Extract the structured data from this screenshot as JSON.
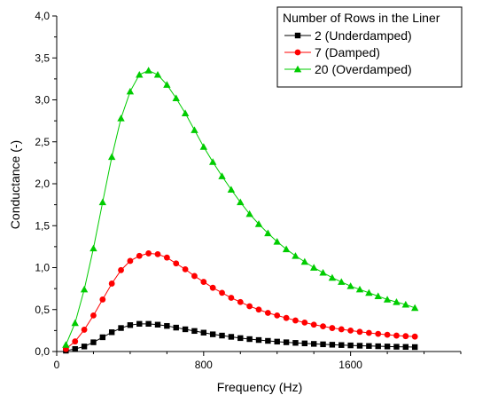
{
  "chart_data": {
    "type": "line",
    "title": "",
    "xlabel": "Frequency (Hz)",
    "ylabel": "Conductance (-)",
    "xlim": [
      0,
      2200
    ],
    "ylim": [
      0,
      4.0
    ],
    "x_ticks": [
      0,
      800,
      1600
    ],
    "x_tick_labels": [
      "0",
      "800",
      "1600"
    ],
    "y_ticks": [
      0,
      0.5,
      1.0,
      1.5,
      2.0,
      2.5,
      3.0,
      3.5,
      4.0
    ],
    "y_tick_labels": [
      "0,0",
      "0,5",
      "1,0",
      "1,5",
      "2,0",
      "2,5",
      "3,0",
      "3,5",
      "4,0"
    ],
    "grid": false,
    "legend": {
      "title": "Number of Rows in the Liner",
      "position": "top-right"
    },
    "x": [
      50,
      100,
      150,
      200,
      250,
      300,
      350,
      400,
      450,
      500,
      550,
      600,
      650,
      700,
      750,
      800,
      850,
      900,
      950,
      1000,
      1050,
      1100,
      1150,
      1200,
      1250,
      1300,
      1350,
      1400,
      1450,
      1500,
      1550,
      1600,
      1650,
      1700,
      1750,
      1800,
      1850,
      1900,
      1950
    ],
    "series": [
      {
        "name": "2 (Underdamped)",
        "color": "#000000",
        "marker": "square",
        "values": [
          0.01,
          0.03,
          0.06,
          0.11,
          0.17,
          0.23,
          0.28,
          0.315,
          0.33,
          0.33,
          0.32,
          0.305,
          0.285,
          0.265,
          0.245,
          0.225,
          0.205,
          0.19,
          0.175,
          0.16,
          0.148,
          0.137,
          0.127,
          0.118,
          0.11,
          0.103,
          0.097,
          0.091,
          0.086,
          0.081,
          0.077,
          0.073,
          0.069,
          0.066,
          0.063,
          0.06,
          0.057,
          0.055,
          0.053
        ]
      },
      {
        "name": "7 (Damped)",
        "color": "#ff0000",
        "marker": "circle",
        "values": [
          0.03,
          0.12,
          0.26,
          0.43,
          0.62,
          0.81,
          0.97,
          1.08,
          1.14,
          1.17,
          1.16,
          1.12,
          1.05,
          0.98,
          0.9,
          0.83,
          0.76,
          0.7,
          0.64,
          0.59,
          0.54,
          0.5,
          0.46,
          0.43,
          0.4,
          0.37,
          0.345,
          0.32,
          0.3,
          0.28,
          0.265,
          0.25,
          0.235,
          0.222,
          0.21,
          0.2,
          0.19,
          0.183,
          0.178
        ]
      },
      {
        "name": "20 (Overdamped)",
        "color": "#00cc00",
        "marker": "triangle",
        "values": [
          0.08,
          0.34,
          0.74,
          1.23,
          1.78,
          2.32,
          2.78,
          3.1,
          3.3,
          3.35,
          3.3,
          3.18,
          3.02,
          2.84,
          2.64,
          2.44,
          2.26,
          2.09,
          1.93,
          1.78,
          1.64,
          1.52,
          1.41,
          1.31,
          1.22,
          1.14,
          1.07,
          1.0,
          0.94,
          0.88,
          0.83,
          0.78,
          0.74,
          0.7,
          0.66,
          0.62,
          0.59,
          0.56,
          0.52
        ]
      }
    ]
  }
}
